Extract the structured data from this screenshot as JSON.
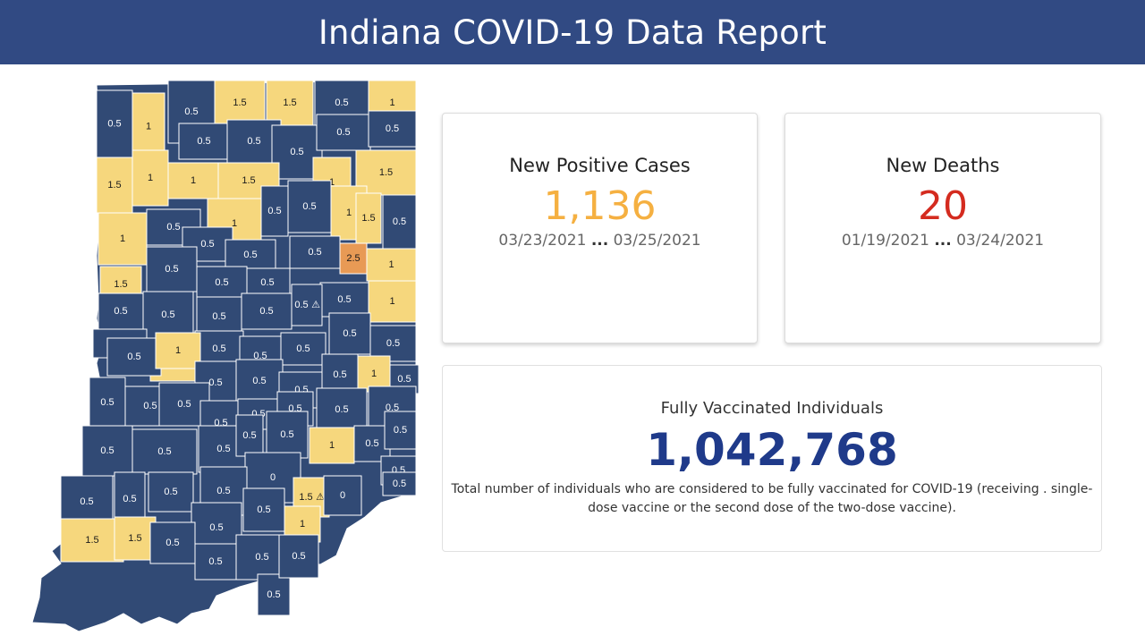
{
  "header": {
    "title": "Indiana COVID-19 Data Report"
  },
  "colors": {
    "header_bg": "#314a83",
    "county_0_5": "#314a75",
    "county_1": "#f6d77d",
    "county_2_5": "#e89a55",
    "county_zero": "#314a75",
    "cases_value": "#f5b041",
    "deaths_value": "#d42b1f",
    "vaccinated_value": "#1f3a8a"
  },
  "map": {
    "legend_note": "",
    "counties": [
      {
        "label": "0.5",
        "level": "0.5"
      },
      {
        "label": "1",
        "level": "1"
      },
      {
        "label": "0.5",
        "level": "0.5"
      },
      {
        "label": "1.5",
        "level": "1"
      },
      {
        "label": "1.5",
        "level": "1"
      },
      {
        "label": "0.5",
        "level": "0.5"
      },
      {
        "label": "1",
        "level": "1"
      },
      {
        "label": "0.5",
        "level": "0.5"
      },
      {
        "label": "0.5",
        "level": "0.5"
      },
      {
        "label": "0.5",
        "level": "0.5"
      },
      {
        "label": "0.5",
        "level": "0.5"
      },
      {
        "label": "0.5",
        "level": "0.5"
      },
      {
        "label": "1.5",
        "level": "1"
      },
      {
        "label": "1",
        "level": "1"
      },
      {
        "label": "1",
        "level": "1"
      },
      {
        "label": "1.5",
        "level": "1"
      },
      {
        "label": "1",
        "level": "1"
      },
      {
        "label": "1.5",
        "level": "1"
      },
      {
        "label": "0.5",
        "level": "0.5"
      },
      {
        "label": "1",
        "level": "1"
      },
      {
        "label": "0.5",
        "level": "0.5"
      },
      {
        "label": "0.5",
        "level": "0.5"
      },
      {
        "label": "1",
        "level": "1"
      },
      {
        "label": "1.5",
        "level": "1"
      },
      {
        "label": "0.5",
        "level": "0.5"
      },
      {
        "label": "1",
        "level": "1"
      },
      {
        "label": "0.5",
        "level": "0.5"
      },
      {
        "label": "0.5",
        "level": "0.5"
      },
      {
        "label": "0.5",
        "level": "0.5"
      },
      {
        "label": "2.5",
        "level": "2.5"
      },
      {
        "label": "1",
        "level": "1"
      },
      {
        "label": "0.5",
        "level": "0.5"
      },
      {
        "label": "0.5",
        "level": "0.5"
      },
      {
        "label": "1.5",
        "level": "1"
      },
      {
        "label": "0.5",
        "level": "0.5"
      },
      {
        "label": "0.5",
        "level": "0.5"
      },
      {
        "label": "1",
        "level": "1"
      },
      {
        "label": "0.5",
        "level": "0.5"
      },
      {
        "label": "0.5",
        "level": "0.5"
      },
      {
        "label": "0.5",
        "level": "0.5"
      },
      {
        "label": "0.5",
        "level": "0.5"
      },
      {
        "label": "0.5",
        "level": "0.5",
        "warning": true
      },
      {
        "label": "0.5",
        "level": "0.5"
      },
      {
        "label": "0.5",
        "level": "0.5"
      },
      {
        "label": "1",
        "level": "1"
      },
      {
        "label": "0.5",
        "level": "0.5"
      },
      {
        "label": "0.5",
        "level": "0.5"
      },
      {
        "label": "0.5",
        "level": "0.5"
      },
      {
        "label": "0.5",
        "level": "0.5"
      },
      {
        "label": "0.5",
        "level": "0.5"
      },
      {
        "label": "1",
        "level": "1"
      },
      {
        "label": "0.5",
        "level": "0.5"
      },
      {
        "label": "0.5",
        "level": "0.5"
      },
      {
        "label": "0.5",
        "level": "0.5"
      },
      {
        "label": "0.5",
        "level": "0.5"
      },
      {
        "label": "1",
        "level": "1"
      },
      {
        "label": "0.5",
        "level": "0.5"
      },
      {
        "label": "0.5",
        "level": "0.5"
      },
      {
        "label": "0.5",
        "level": "0.5"
      },
      {
        "label": "0.5",
        "level": "0.5"
      },
      {
        "label": "0.5",
        "level": "0.5"
      },
      {
        "label": "0.5",
        "level": "0.5"
      },
      {
        "label": "0.5",
        "level": "0.5"
      },
      {
        "label": "0.5",
        "level": "0.5"
      },
      {
        "label": "0.5",
        "level": "0.5"
      },
      {
        "label": "0.5",
        "level": "0.5"
      },
      {
        "label": "0.5",
        "level": "0.5"
      },
      {
        "label": "0.5",
        "level": "0.5"
      },
      {
        "label": "0.5",
        "level": "0.5"
      },
      {
        "label": "0.5",
        "level": "0.5"
      },
      {
        "label": "1",
        "level": "1"
      },
      {
        "label": "0.5",
        "level": "0.5"
      },
      {
        "label": "0.5",
        "level": "0.5"
      },
      {
        "label": "0",
        "level": "0"
      },
      {
        "label": "0.5",
        "level": "0.5"
      },
      {
        "label": "0.5",
        "level": "0.5"
      },
      {
        "label": "0.5",
        "level": "0.5"
      },
      {
        "label": "0.5",
        "level": "0.5"
      },
      {
        "label": "0.5",
        "level": "0.5"
      },
      {
        "label": "0.5",
        "level": "0.5"
      },
      {
        "label": "1.5",
        "level": "1",
        "warning": true
      },
      {
        "label": "0",
        "level": "0"
      },
      {
        "label": "0.5",
        "level": "0.5"
      },
      {
        "label": "0.5",
        "level": "0.5"
      },
      {
        "label": "1.5",
        "level": "1"
      },
      {
        "label": "1.5",
        "level": "1"
      },
      {
        "label": "0.5",
        "level": "0.5"
      },
      {
        "label": "0.5",
        "level": "0.5"
      },
      {
        "label": "0.5",
        "level": "0.5"
      },
      {
        "label": "0.5",
        "level": "0.5"
      },
      {
        "label": "1",
        "level": "1"
      },
      {
        "label": "0.5",
        "level": "0.5"
      }
    ]
  },
  "cases": {
    "title": "New Positive Cases",
    "value": "1,136",
    "range_start": "03/23/2021",
    "range_sep": "...",
    "range_end": "03/25/2021"
  },
  "deaths": {
    "title": "New Deaths",
    "value": "20",
    "range_start": "01/19/2021",
    "range_sep": "...",
    "range_end": "03/24/2021"
  },
  "vaccinated": {
    "title": "Fully Vaccinated Individuals",
    "value": "1,042,768",
    "description": "Total number of individuals who are considered to be fully vaccinated for COVID-19 (receiving . single-dose vaccine or the second dose of the two-dose vaccine)."
  }
}
